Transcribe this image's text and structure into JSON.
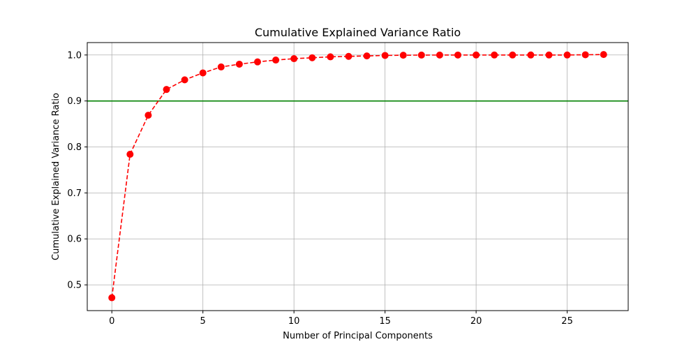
{
  "chart_data": {
    "type": "line",
    "title": "Cumulative Explained Variance Ratio",
    "xlabel": "Number of Principal Components",
    "ylabel": "Cumulative Explained Variance Ratio",
    "xlim": [
      -1.35,
      28.35
    ],
    "ylim": [
      0.444,
      1.027
    ],
    "xticks": [
      0,
      5,
      10,
      15,
      20,
      25
    ],
    "yticks": [
      0.5,
      0.6,
      0.7,
      0.8,
      0.9,
      1.0
    ],
    "ytick_labels": [
      "0.5",
      "0.6",
      "0.7",
      "0.8",
      "0.9",
      "1.0"
    ],
    "grid": true,
    "series": [
      {
        "color": "#ff0000",
        "linestyle": "dashed",
        "marker": "circle",
        "x": [
          0,
          1,
          2,
          3,
          4,
          5,
          6,
          7,
          8,
          9,
          10,
          11,
          12,
          13,
          14,
          15,
          16,
          17,
          18,
          19,
          20,
          21,
          22,
          23,
          24,
          25,
          26,
          27
        ],
        "values": [
          0.472,
          0.784,
          0.869,
          0.925,
          0.946,
          0.961,
          0.974,
          0.98,
          0.985,
          0.989,
          0.992,
          0.994,
          0.996,
          0.997,
          0.998,
          0.999,
          0.9995,
          0.9998,
          0.9999,
          0.99995,
          1.0,
          1.0,
          1.0,
          1.0,
          1.0,
          1.0,
          1.0005,
          1.001
        ]
      }
    ],
    "reference_lines": [
      {
        "orientation": "horizontal",
        "y": 0.9,
        "color": "#008000"
      }
    ]
  }
}
